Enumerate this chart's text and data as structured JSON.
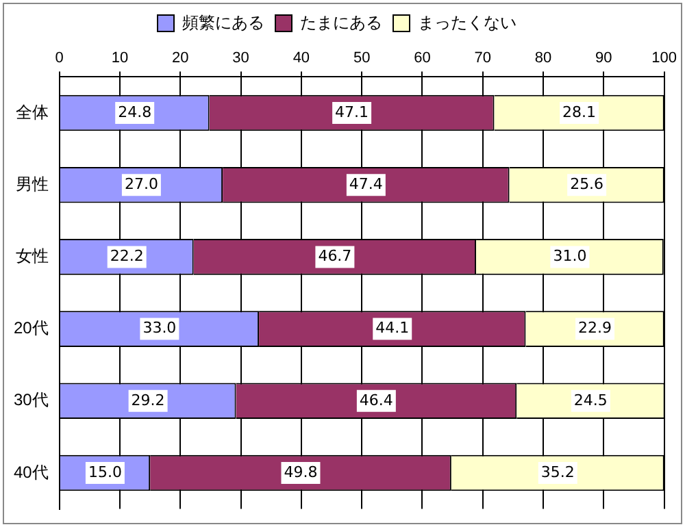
{
  "chart_data": {
    "type": "bar",
    "orientation": "horizontal",
    "stacked": true,
    "categories": [
      "全体",
      "男性",
      "女性",
      "20代",
      "30代",
      "40代"
    ],
    "series": [
      {
        "name": "頻繁にある",
        "color": "#9999ff",
        "values": [
          24.8,
          27.0,
          22.2,
          33.0,
          29.2,
          15.0
        ]
      },
      {
        "name": "たまにある",
        "color": "#993366",
        "values": [
          47.1,
          47.4,
          46.7,
          44.1,
          46.4,
          49.8
        ]
      },
      {
        "name": "まったくない",
        "color": "#ffffcc",
        "values": [
          28.1,
          25.6,
          31.0,
          22.9,
          24.5,
          35.2
        ]
      }
    ],
    "value_labels": [
      [
        "24.8",
        "27.0",
        "22.2",
        "33.0",
        "29.2",
        "15.0"
      ],
      [
        "47.1",
        "47.4",
        "46.7",
        "44.1",
        "46.4",
        "49.8"
      ],
      [
        "28.1",
        "25.6",
        "31.0",
        "22.9",
        "24.5",
        "35.2"
      ]
    ],
    "xlim": [
      0,
      100
    ],
    "xticks": [
      0,
      10,
      20,
      30,
      40,
      50,
      60,
      70,
      80,
      90,
      100
    ],
    "grid": "x",
    "legend": "top"
  }
}
